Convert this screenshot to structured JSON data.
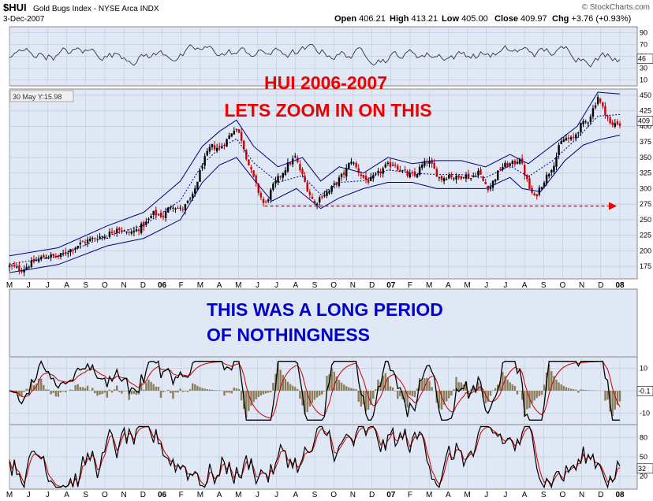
{
  "header": {
    "symbol": "$HUI",
    "name": "Gold Bugs Index - NYSE Arca  INDX",
    "date": "3-Dec-2007",
    "credit": "© StockCharts.com",
    "ohlc": [
      {
        "label": "Open",
        "value": "406.21"
      },
      {
        "label": "High",
        "value": "413.21"
      },
      {
        "label": "Low",
        "value": "405.00"
      },
      {
        "label": "Close",
        "value": "409.97"
      },
      {
        "label": "Chg",
        "value": "+3.76 (+0.93%)"
      }
    ]
  },
  "annotations": {
    "title_line1": "HUI 2006-2007",
    "title_line2": "LETS ZOOM IN ON THIS",
    "note_line1": "THIS WAS A LONG PERIOD",
    "note_line2": "OF NOTHINGNESS",
    "crosshair": "30 May Y:15.98"
  },
  "colors": {
    "panel_bg": "#dfe8f4",
    "grid": "#b8c4d6",
    "candle_up": "#000000",
    "candle_down": "#cc0000",
    "bands": "#000080",
    "annotation_red": "#ee0000",
    "annotation_blue": "#0000cc",
    "macd_hist": "#8b7d5a",
    "signal": "#cc0000"
  },
  "chart_data": [
    {
      "type": "line",
      "panel": "rsi",
      "ylim": [
        0,
        100
      ],
      "yticks": [
        "90",
        "70",
        "50",
        "30",
        "10"
      ],
      "label_value": "46"
    },
    {
      "type": "line",
      "panel": "price",
      "series_kind": "candlestick with bands",
      "ylim": [
        155,
        460
      ],
      "yticks": [
        "450",
        "425",
        "400",
        "375",
        "350",
        "325",
        "300",
        "275",
        "250",
        "225",
        "200",
        "175"
      ],
      "x_tick_labels": [
        "M",
        "J",
        "J",
        "A",
        "S",
        "O",
        "N",
        "D",
        "06",
        "F",
        "M",
        "A",
        "M",
        "J",
        "J",
        "A",
        "S",
        "O",
        "N",
        "D",
        "07",
        "F",
        "M",
        "A",
        "M",
        "J",
        "J",
        "A",
        "S",
        "O",
        "N",
        "D",
        "08"
      ],
      "path_points": [
        [
          0,
          175
        ],
        [
          10,
          170
        ],
        [
          22,
          185
        ],
        [
          30,
          192
        ],
        [
          40,
          190
        ],
        [
          55,
          208
        ],
        [
          62,
          215
        ],
        [
          72,
          222
        ],
        [
          80,
          225
        ],
        [
          88,
          238
        ],
        [
          96,
          228
        ],
        [
          103,
          232
        ],
        [
          112,
          245
        ],
        [
          118,
          260
        ],
        [
          126,
          256
        ],
        [
          133,
          275
        ],
        [
          141,
          265
        ],
        [
          150,
          287
        ],
        [
          158,
          339
        ],
        [
          165,
          368
        ],
        [
          172,
          365
        ],
        [
          178,
          378
        ],
        [
          185,
          400
        ],
        [
          190,
          380
        ],
        [
          196,
          338
        ],
        [
          203,
          300
        ],
        [
          209,
          272
        ],
        [
          215,
          300
        ],
        [
          222,
          322
        ],
        [
          228,
          338
        ],
        [
          234,
          350
        ],
        [
          240,
          320
        ],
        [
          245,
          295
        ],
        [
          250,
          275
        ],
        [
          256,
          290
        ],
        [
          262,
          296
        ],
        [
          268,
          310
        ],
        [
          275,
          327
        ],
        [
          280,
          346
        ],
        [
          285,
          330
        ],
        [
          291,
          315
        ],
        [
          295,
          312
        ],
        [
          301,
          322
        ],
        [
          308,
          335
        ],
        [
          315,
          341
        ],
        [
          320,
          330
        ],
        [
          326,
          322
        ],
        [
          332,
          320
        ],
        [
          337,
          335
        ],
        [
          343,
          345
        ],
        [
          348,
          330
        ],
        [
          353,
          315
        ],
        [
          360,
          322
        ],
        [
          367,
          316
        ],
        [
          372,
          323
        ],
        [
          378,
          317
        ],
        [
          384,
          328
        ],
        [
          388,
          312
        ],
        [
          393,
          300
        ],
        [
          398,
          318
        ],
        [
          403,
          335
        ],
        [
          408,
          338
        ],
        [
          413,
          340
        ],
        [
          418,
          350
        ],
        [
          420,
          336
        ],
        [
          423,
          318
        ],
        [
          426,
          300
        ],
        [
          430,
          285
        ],
        [
          436,
          307
        ],
        [
          441,
          323
        ],
        [
          447,
          345
        ],
        [
          451,
          372
        ],
        [
          455,
          381
        ],
        [
          461,
          378
        ],
        [
          468,
          401
        ],
        [
          474,
          410
        ],
        [
          478,
          428
        ],
        [
          482,
          448
        ],
        [
          485,
          432
        ],
        [
          489,
          420
        ],
        [
          493,
          398
        ],
        [
          497,
          408
        ],
        [
          500,
          402
        ]
      ],
      "upper_band_points": [
        [
          0,
          192
        ],
        [
          40,
          205
        ],
        [
          80,
          240
        ],
        [
          110,
          262
        ],
        [
          140,
          312
        ],
        [
          158,
          368
        ],
        [
          172,
          392
        ],
        [
          186,
          410
        ],
        [
          200,
          368
        ],
        [
          220,
          335
        ],
        [
          240,
          350
        ],
        [
          255,
          312
        ],
        [
          270,
          335
        ],
        [
          290,
          325
        ],
        [
          310,
          350
        ],
        [
          330,
          340
        ],
        [
          350,
          345
        ],
        [
          370,
          345
        ],
        [
          390,
          335
        ],
        [
          410,
          355
        ],
        [
          425,
          340
        ],
        [
          445,
          370
        ],
        [
          465,
          400
        ],
        [
          482,
          455
        ],
        [
          500,
          452
        ]
      ],
      "lower_band_points": [
        [
          0,
          165
        ],
        [
          40,
          178
        ],
        [
          80,
          208
        ],
        [
          110,
          220
        ],
        [
          140,
          250
        ],
        [
          158,
          310
        ],
        [
          172,
          338
        ],
        [
          186,
          350
        ],
        [
          200,
          315
        ],
        [
          215,
          280
        ],
        [
          235,
          300
        ],
        [
          255,
          268
        ],
        [
          270,
          285
        ],
        [
          290,
          300
        ],
        [
          310,
          310
        ],
        [
          330,
          310
        ],
        [
          350,
          300
        ],
        [
          370,
          300
        ],
        [
          390,
          300
        ],
        [
          410,
          318
        ],
        [
          420,
          300
        ],
        [
          435,
          295
        ],
        [
          455,
          345
        ],
        [
          470,
          370
        ],
        [
          482,
          378
        ],
        [
          500,
          386
        ]
      ],
      "support_line": {
        "from": [
          209,
          272
        ],
        "to": [
          491,
          272
        ]
      },
      "last_value": "409"
    },
    {
      "type": "line",
      "panel": "macd",
      "ylim": [
        -15,
        15
      ],
      "yticks": [
        "10",
        "0",
        "-10"
      ],
      "label_value": "-0.1"
    },
    {
      "type": "line",
      "panel": "stochastic",
      "ylim": [
        0,
        100
      ],
      "yticks": [
        "80",
        "50",
        "20"
      ],
      "label_value": "32",
      "label_value2": "25"
    }
  ]
}
